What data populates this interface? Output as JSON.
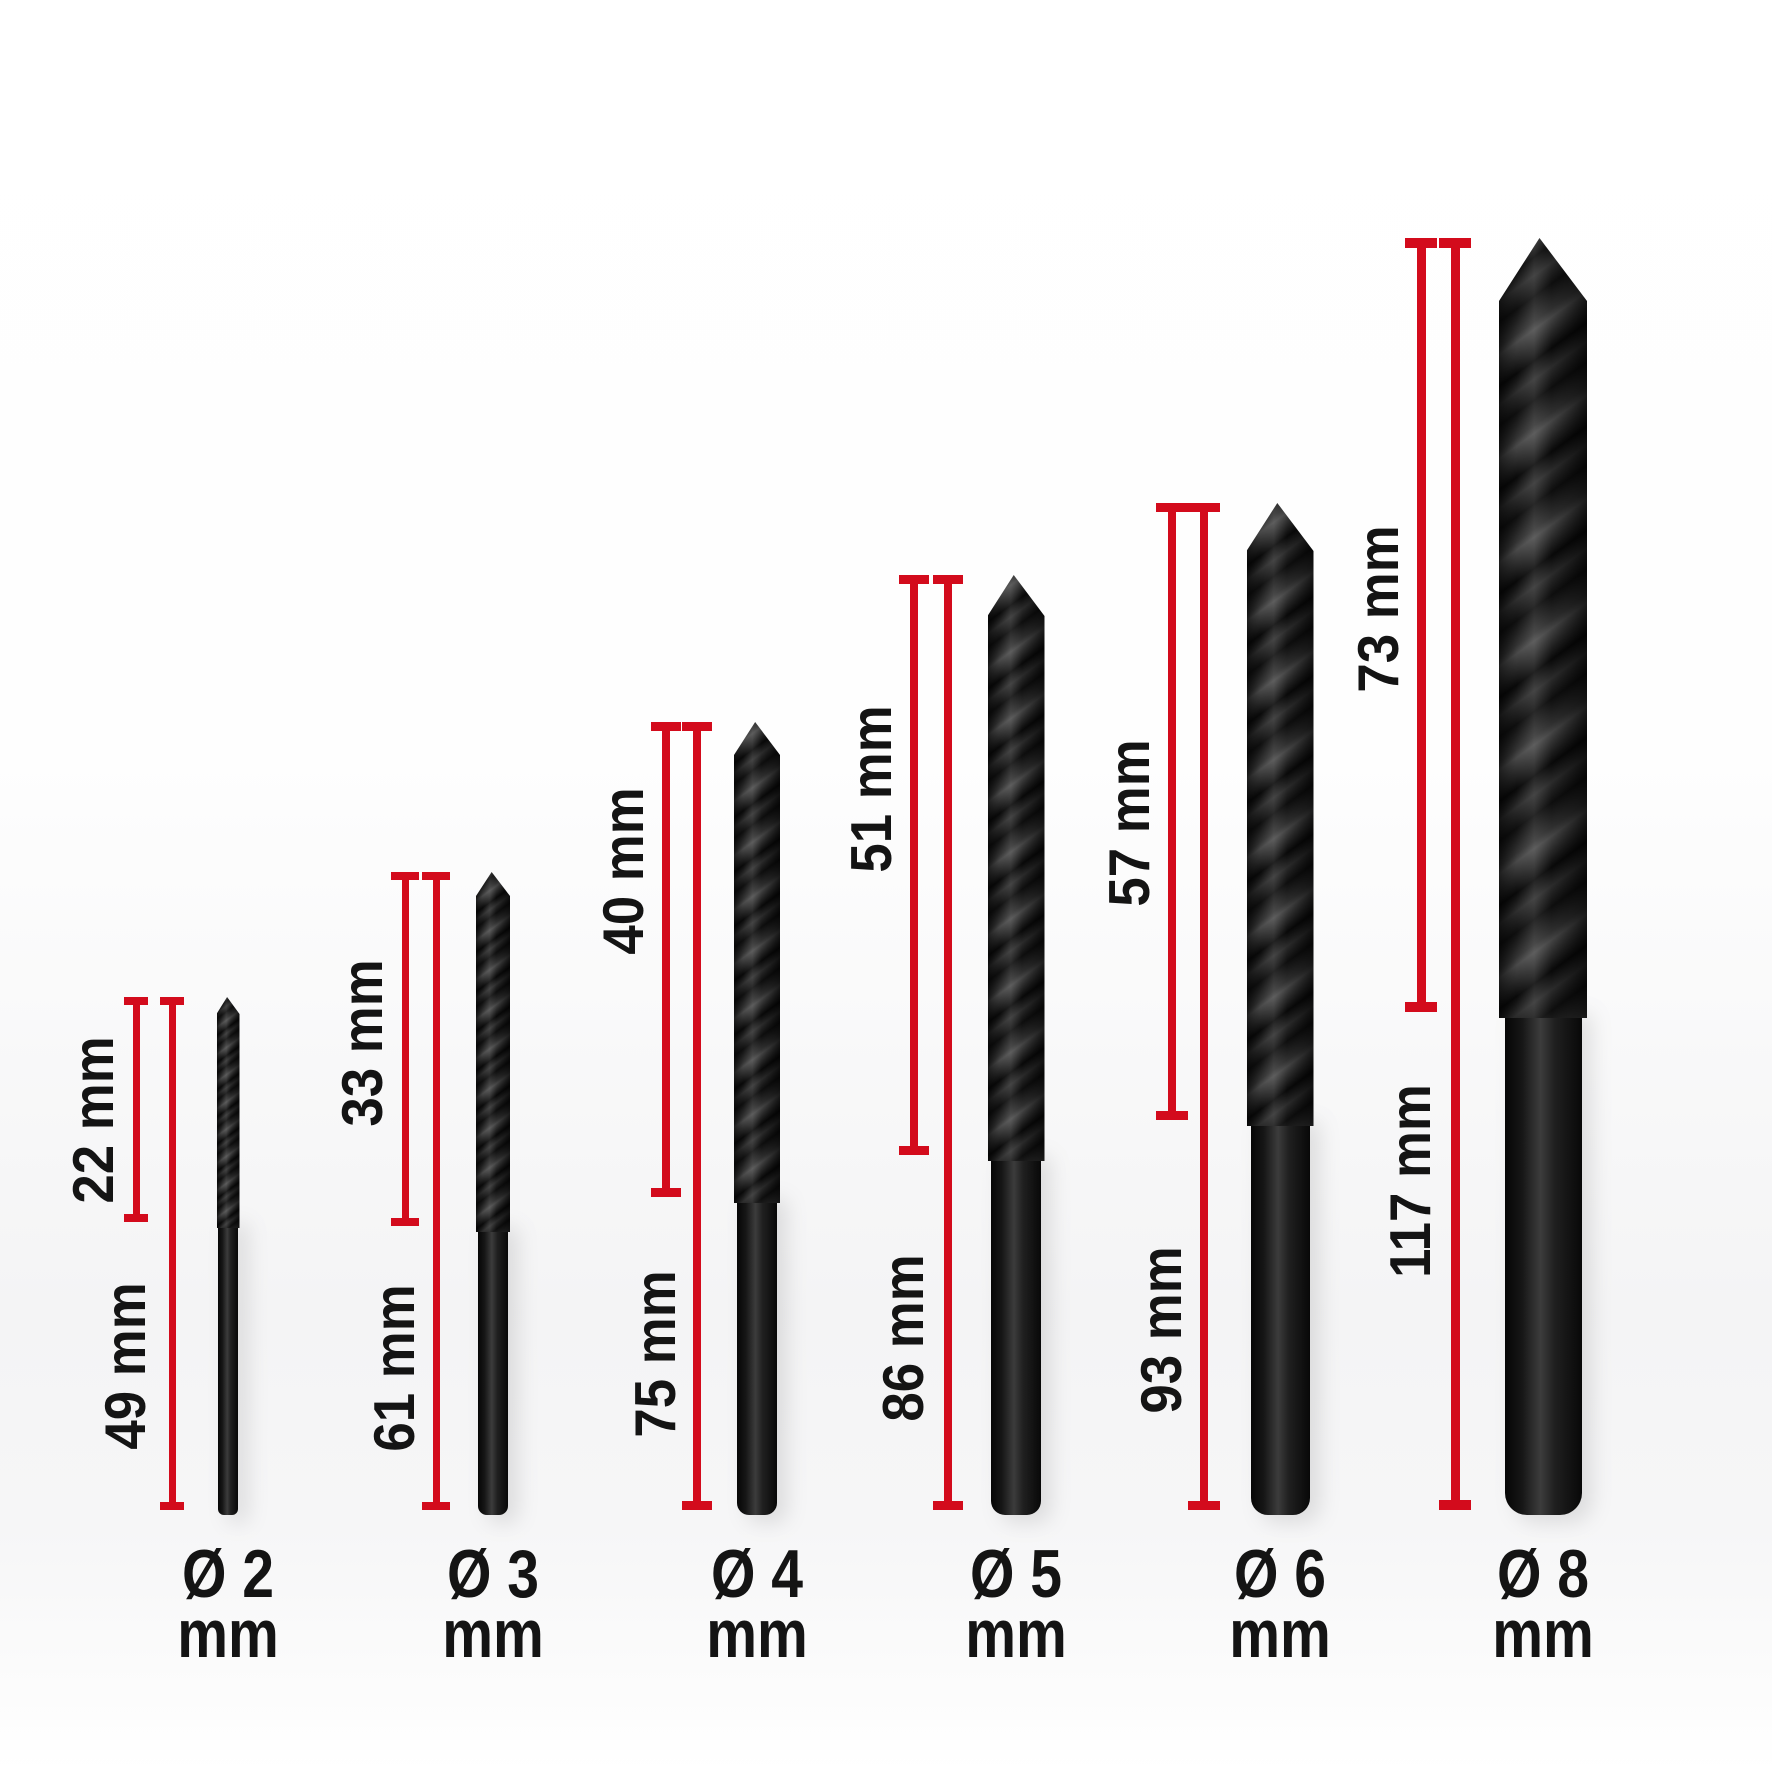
{
  "unit": "mm",
  "accent_color": "#d30b1c",
  "text_color": "#141414",
  "bits": [
    {
      "diameter_mm": 2,
      "diameter_label": "Ø 2",
      "diameter_unit_label": "mm",
      "flute_length_mm": 22,
      "flute_length_label": "22 mm",
      "total_length_mm": 49,
      "total_length_label": "49 mm"
    },
    {
      "diameter_mm": 3,
      "diameter_label": "Ø 3",
      "diameter_unit_label": "mm",
      "flute_length_mm": 33,
      "flute_length_label": "33 mm",
      "total_length_mm": 61,
      "total_length_label": "61 mm"
    },
    {
      "diameter_mm": 4,
      "diameter_label": "Ø 4",
      "diameter_unit_label": "mm",
      "flute_length_mm": 40,
      "flute_length_label": "40 mm",
      "total_length_mm": 75,
      "total_length_label": "75 mm"
    },
    {
      "diameter_mm": 5,
      "diameter_label": "Ø 5",
      "diameter_unit_label": "mm",
      "flute_length_mm": 51,
      "flute_length_label": "51 mm",
      "total_length_mm": 86,
      "total_length_label": "86 mm"
    },
    {
      "diameter_mm": 6,
      "diameter_label": "Ø 6",
      "diameter_unit_label": "mm",
      "flute_length_mm": 57,
      "flute_length_label": "57 mm",
      "total_length_mm": 93,
      "total_length_label": "93 mm"
    },
    {
      "diameter_mm": 8,
      "diameter_label": "Ø 8",
      "diameter_unit_label": "mm",
      "flute_length_mm": 73,
      "flute_length_label": "73 mm",
      "total_length_mm": 117,
      "total_length_label": "117 mm"
    }
  ]
}
